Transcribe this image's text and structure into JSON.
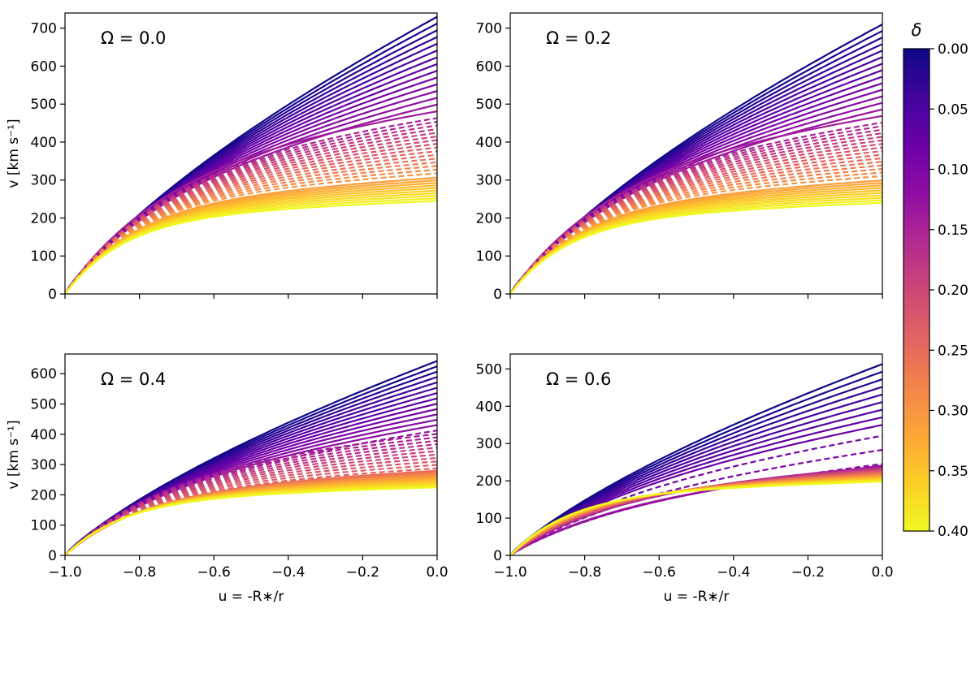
{
  "chart_data": {
    "type": "line",
    "panels": [
      {
        "label": "Ω = 0.0",
        "ylim": [
          0,
          740
        ],
        "yticks": [
          0,
          100,
          200,
          300,
          400,
          500,
          600,
          700
        ],
        "vmax_top": 730,
        "vbot": 245,
        "dashed_from": 0.15,
        "dashed_to": 0.3
      },
      {
        "label": "Ω = 0.2",
        "ylim": [
          0,
          740
        ],
        "yticks": [
          0,
          100,
          200,
          300,
          400,
          500,
          600,
          700
        ],
        "vmax_top": 710,
        "vbot": 240,
        "dashed_from": 0.15,
        "dashed_to": 0.3
      },
      {
        "label": "Ω = 0.4",
        "ylim": [
          0,
          665
        ],
        "yticks": [
          0,
          100,
          200,
          300,
          400,
          500,
          600
        ],
        "vmax_top": 642,
        "vbot": 225,
        "dashed_from": 0.13,
        "dashed_to": 0.24
      },
      {
        "label": "Ω = 0.6",
        "ylim": [
          0,
          540
        ],
        "yticks": [
          0,
          100,
          200,
          300,
          400,
          500
        ],
        "vmax_top": 513,
        "vbot": 198,
        "dashed_from": 0.085,
        "dashed_to": 0.11
      }
    ],
    "xlim": [
      -1.0,
      0.0
    ],
    "xticks": [
      -1.0,
      -0.8,
      -0.6,
      -0.4,
      -0.2,
      0.0
    ],
    "xtick_labels": [
      "−1.0",
      "−0.8",
      "−0.6",
      "−0.4",
      "−0.2",
      "0.0"
    ],
    "xlabel": "u = -R∗/r",
    "ylabel": "v [km s⁻¹]",
    "colorbar": {
      "label": "δ",
      "range": [
        0.0,
        0.4
      ],
      "ticks": [
        0.0,
        0.05,
        0.1,
        0.15,
        0.2,
        0.25,
        0.3,
        0.35,
        0.4
      ],
      "tick_labels": [
        "0.00",
        "0.05",
        "0.10",
        "0.15",
        "0.20",
        "0.25",
        "0.30",
        "0.35",
        "0.40"
      ],
      "colormap": "plasma",
      "orientation": "inverted"
    },
    "series_delta": {
      "start": 0.0,
      "stop": 0.4,
      "step": 0.01
    },
    "grid": false
  }
}
